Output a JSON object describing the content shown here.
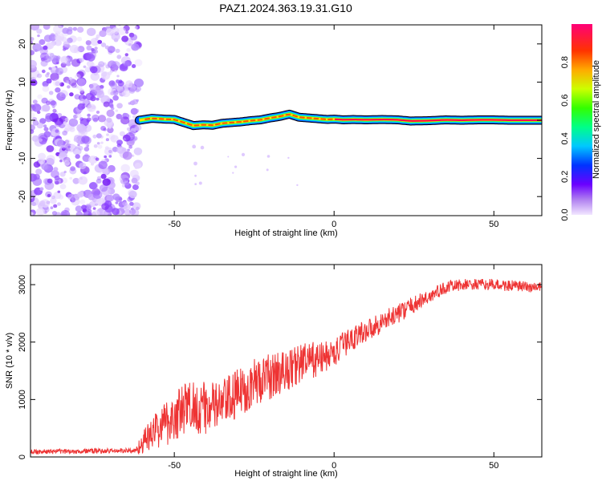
{
  "title": "PAZ1.2024.363.19.31.G10",
  "chart_data": [
    {
      "type": "heatmap",
      "title": "PAZ1.2024.363.19.31.G10",
      "xlabel": "Height of straight line (km)",
      "ylabel": "Frequency (Hz)",
      "xlim": [
        -95,
        65
      ],
      "ylim": [
        -25,
        25
      ],
      "x_ticks": [
        -50,
        0,
        50
      ],
      "y_ticks": [
        -20,
        -10,
        0,
        10,
        20
      ],
      "grid": false,
      "colorbar": {
        "label": "Normalized spectral amplitude",
        "range": [
          0,
          1
        ],
        "ticks": [
          0.0,
          0.2,
          0.4,
          0.6,
          0.8
        ]
      },
      "noise_region": {
        "x": [
          -95,
          -61
        ],
        "y": [
          -25,
          25
        ]
      },
      "signal_track": {
        "x": [
          -61,
          -57,
          -53,
          -50,
          -47,
          -44,
          -41,
          -38,
          -35,
          -32,
          -29,
          -26,
          -23,
          -20,
          -17,
          -14,
          -11,
          -8,
          -5,
          -2,
          0,
          3,
          6,
          10,
          15,
          20,
          24,
          30,
          35,
          40,
          45,
          50,
          55,
          60,
          65
        ],
        "freq": [
          0,
          0.5,
          0.3,
          0.2,
          -0.6,
          -1.4,
          -1.2,
          -1.3,
          -0.8,
          -0.6,
          -0.4,
          -0.1,
          0.1,
          0.6,
          1.0,
          1.6,
          0.8,
          0.6,
          0.4,
          0.2,
          0.3,
          0.1,
          0.2,
          0.1,
          0.2,
          0.1,
          -0.2,
          -0.1,
          0.1,
          0.0,
          0.1,
          0.1,
          0.0,
          0.0,
          0.0
        ]
      }
    },
    {
      "type": "line",
      "xlabel": "Height of straight line (km)",
      "ylabel": "SNR (10 * v/v)",
      "xlim": [
        -95,
        65
      ],
      "ylim": [
        0,
        3350
      ],
      "x_ticks": [
        -50,
        0,
        50
      ],
      "y_ticks": [
        0,
        1000,
        2000,
        3000
      ],
      "color": "#ee3333",
      "envelope": {
        "x": [
          -95,
          -80,
          -62,
          -60,
          -55,
          -50,
          -45,
          -40,
          -35,
          -30,
          -25,
          -20,
          -15,
          -10,
          -5,
          0,
          5,
          10,
          15,
          20,
          25,
          30,
          35,
          40,
          45,
          50,
          55,
          60,
          65
        ],
        "mean": [
          90,
          100,
          110,
          250,
          500,
          700,
          900,
          850,
          900,
          1100,
          1300,
          1400,
          1500,
          1650,
          1700,
          1800,
          2050,
          2200,
          2350,
          2500,
          2650,
          2800,
          2950,
          3000,
          3000,
          3000,
          2980,
          2960,
          2950
        ],
        "spread": [
          40,
          45,
          45,
          200,
          350,
          450,
          500,
          450,
          450,
          450,
          420,
          400,
          380,
          350,
          300,
          250,
          220,
          200,
          180,
          170,
          150,
          130,
          110,
          100,
          100,
          100,
          100,
          100,
          100
        ]
      }
    }
  ]
}
